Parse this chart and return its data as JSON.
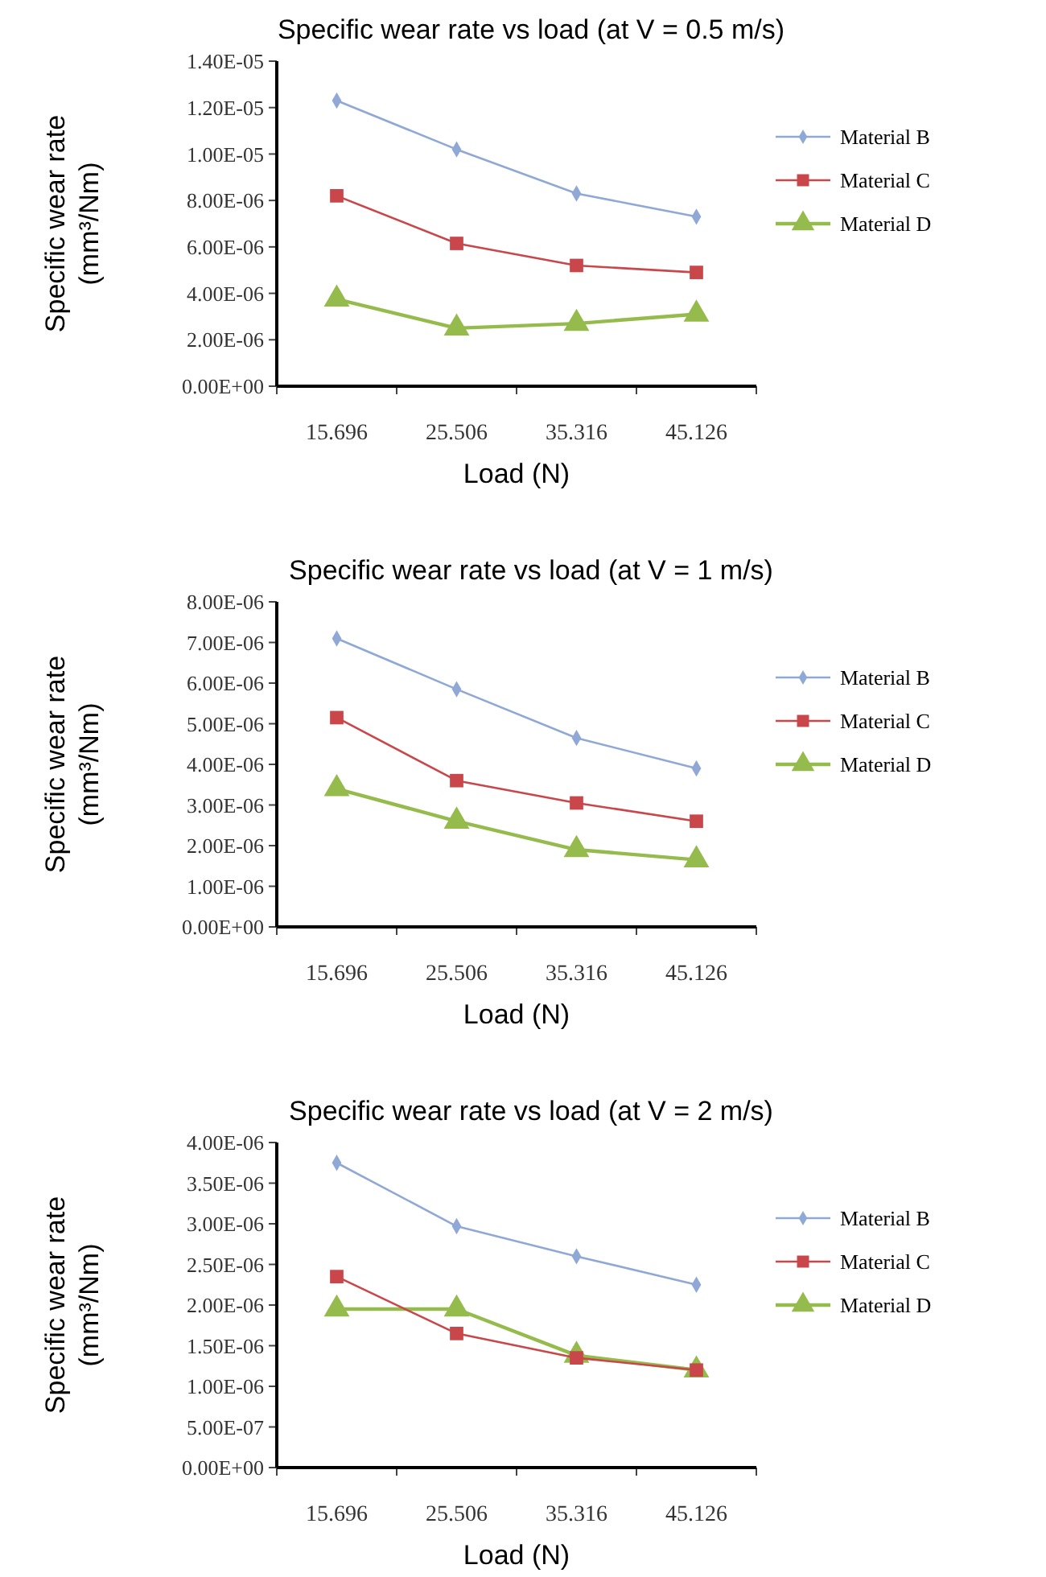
{
  "chart_data": [
    {
      "type": "line",
      "title": "Specific wear rate vs load (at V = 0.5 m/s)",
      "xlabel": "Load (N)",
      "ylabel": "Specific wear rate\n(mm³/Nm)",
      "categories": [
        "15.696",
        "25.506",
        "35.316",
        "45.126"
      ],
      "ylim": [
        0,
        1.4e-05
      ],
      "yticks": [
        {
          "value": 0,
          "label": "0.00E+00"
        },
        {
          "value": 2e-06,
          "label": "2.00E-06"
        },
        {
          "value": 4e-06,
          "label": "4.00E-06"
        },
        {
          "value": 6e-06,
          "label": "6.00E-06"
        },
        {
          "value": 8e-06,
          "label": "8.00E-06"
        },
        {
          "value": 1e-05,
          "label": "1.00E-05"
        },
        {
          "value": 1.2e-05,
          "label": "1.20E-05"
        },
        {
          "value": 1.4e-05,
          "label": "1.40E-05"
        }
      ],
      "legend": "right",
      "grid": false,
      "series": [
        {
          "name": "Material B",
          "color": "#8fa8d6",
          "marker": "diamond",
          "values": [
            1.23e-05,
            1.02e-05,
            8.3e-06,
            7.3e-06
          ]
        },
        {
          "name": "Material C",
          "color": "#c9474a",
          "marker": "square",
          "values": [
            8.2e-06,
            6.15e-06,
            5.2e-06,
            4.9e-06
          ]
        },
        {
          "name": "Material D",
          "color": "#94bb4c",
          "marker": "triangle",
          "values": [
            3.75e-06,
            2.5e-06,
            2.7e-06,
            3.1e-06
          ]
        }
      ]
    },
    {
      "type": "line",
      "title": "Specific wear rate vs load (at V = 1 m/s)",
      "xlabel": "Load (N)",
      "ylabel": "Specific wear rate\n(mm³/Nm)",
      "categories": [
        "15.696",
        "25.506",
        "35.316",
        "45.126"
      ],
      "ylim": [
        0,
        8e-06
      ],
      "yticks": [
        {
          "value": 0,
          "label": "0.00E+00"
        },
        {
          "value": 1e-06,
          "label": "1.00E-06"
        },
        {
          "value": 2e-06,
          "label": "2.00E-06"
        },
        {
          "value": 3e-06,
          "label": "3.00E-06"
        },
        {
          "value": 4e-06,
          "label": "4.00E-06"
        },
        {
          "value": 5e-06,
          "label": "5.00E-06"
        },
        {
          "value": 6e-06,
          "label": "6.00E-06"
        },
        {
          "value": 7e-06,
          "label": "7.00E-06"
        },
        {
          "value": 8e-06,
          "label": "8.00E-06"
        }
      ],
      "legend": "right",
      "grid": false,
      "series": [
        {
          "name": "Material B",
          "color": "#8fa8d6",
          "marker": "diamond",
          "values": [
            7.1e-06,
            5.85e-06,
            4.65e-06,
            3.9e-06
          ]
        },
        {
          "name": "Material C",
          "color": "#c9474a",
          "marker": "square",
          "values": [
            5.15e-06,
            3.6e-06,
            3.05e-06,
            2.6e-06
          ]
        },
        {
          "name": "Material D",
          "color": "#94bb4c",
          "marker": "triangle",
          "values": [
            3.4e-06,
            2.6e-06,
            1.9e-06,
            1.65e-06
          ]
        }
      ]
    },
    {
      "type": "line",
      "title": "Specific wear rate vs load (at V = 2 m/s)",
      "xlabel": "Load (N)",
      "ylabel": "Specific wear rate\n(mm³/Nm)",
      "categories": [
        "15.696",
        "25.506",
        "35.316",
        "45.126"
      ],
      "ylim": [
        0,
        4e-06
      ],
      "yticks": [
        {
          "value": 0,
          "label": "0.00E+00"
        },
        {
          "value": 5e-07,
          "label": "5.00E-07"
        },
        {
          "value": 1e-06,
          "label": "1.00E-06"
        },
        {
          "value": 1.5e-06,
          "label": "1.50E-06"
        },
        {
          "value": 2e-06,
          "label": "2.00E-06"
        },
        {
          "value": 2.5e-06,
          "label": "2.50E-06"
        },
        {
          "value": 3e-06,
          "label": "3.00E-06"
        },
        {
          "value": 3.5e-06,
          "label": "3.50E-06"
        },
        {
          "value": 4e-06,
          "label": "4.00E-06"
        }
      ],
      "legend": "right",
      "grid": false,
      "series": [
        {
          "name": "Material B",
          "color": "#8fa8d6",
          "marker": "diamond",
          "values": [
            3.75e-06,
            2.97e-06,
            2.6e-06,
            2.25e-06
          ]
        },
        {
          "name": "Material C",
          "color": "#c9474a",
          "marker": "square",
          "values": [
            2.35e-06,
            1.65e-06,
            1.35e-06,
            1.2e-06
          ]
        },
        {
          "name": "Material D",
          "color": "#94bb4c",
          "marker": "triangle",
          "values": [
            1.95e-06,
            1.95e-06,
            1.38e-06,
            1.2e-06
          ]
        }
      ]
    }
  ]
}
